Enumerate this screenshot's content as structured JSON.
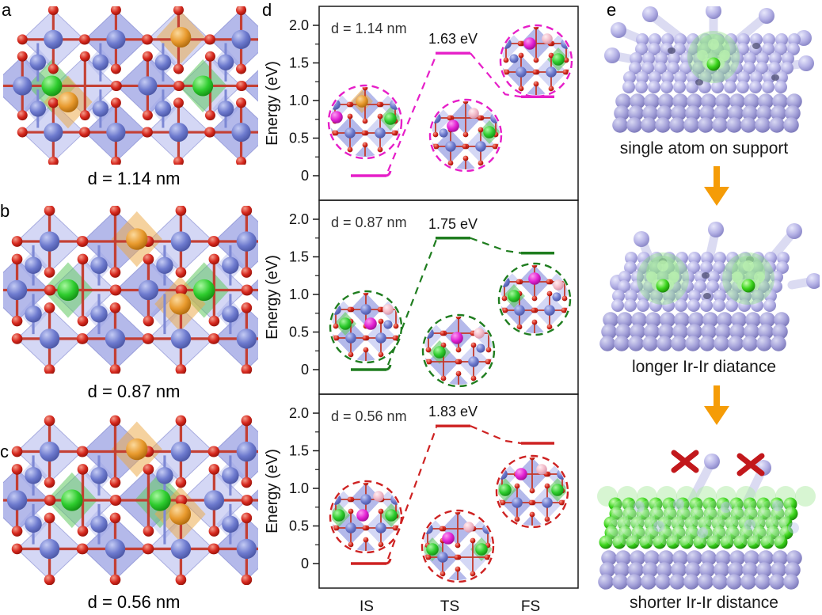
{
  "panels": {
    "a": {
      "letter": "a",
      "caption": "d = 1.14 nm"
    },
    "b": {
      "letter": "b",
      "caption": "d = 0.87 nm"
    },
    "c": {
      "letter": "c",
      "caption": "d = 0.56 nm"
    },
    "d": {
      "letter": "d"
    },
    "e": {
      "letter": "e",
      "steps": [
        {
          "caption": "single atom on support"
        },
        {
          "caption": "longer Ir-Ir diatance"
        },
        {
          "caption": "shorter Ir-Ir distance"
        }
      ],
      "arrow_color": "#F59C07",
      "cross_color": "#C2181C"
    }
  },
  "chart_data": {
    "type": "line",
    "description": "Stacked reaction energy profiles (IS to TS to FS) for three Ir-Ir distances",
    "ylabel": "Energy (eV)",
    "yticks": [
      "0",
      "0.5",
      "1.0",
      "1.5",
      "2.0"
    ],
    "ytick_values": [
      0,
      0.5,
      1.0,
      1.5,
      2.0
    ],
    "ylim": [
      -0.33,
      2.25
    ],
    "x_states": [
      "IS",
      "TS",
      "FS"
    ],
    "grid": false,
    "legend": "none",
    "series": [
      {
        "name": "d = 1.14 nm",
        "color": "#E61EC8",
        "energies_eV": {
          "IS": 0,
          "TS": 1.63,
          "FS": 1.05
        },
        "barrier_label": "1.63 eV"
      },
      {
        "name": "d = 0.87 nm",
        "color": "#1F7D1F",
        "energies_eV": {
          "IS": 0,
          "TS": 1.75,
          "FS": 1.55
        },
        "barrier_label": "1.75 eV"
      },
      {
        "name": "d = 0.56 nm",
        "color": "#CE2222",
        "energies_eV": {
          "IS": 0,
          "TS": 1.83,
          "FS": 1.6
        },
        "barrier_label": "1.83 eV"
      }
    ]
  },
  "atom_colors": {
    "lattice_blue": "#6D7ACE",
    "oxygen_red": "#D6281E",
    "iridium_green": "#2ECC2E",
    "dopant_orange": "#E89A2E",
    "migrating_magenta": "#E322D4",
    "hydroxyl_pink": "#F2BAC8",
    "support_lavender": "#B5B2E6",
    "overlayer_green": "#3BD41C"
  }
}
